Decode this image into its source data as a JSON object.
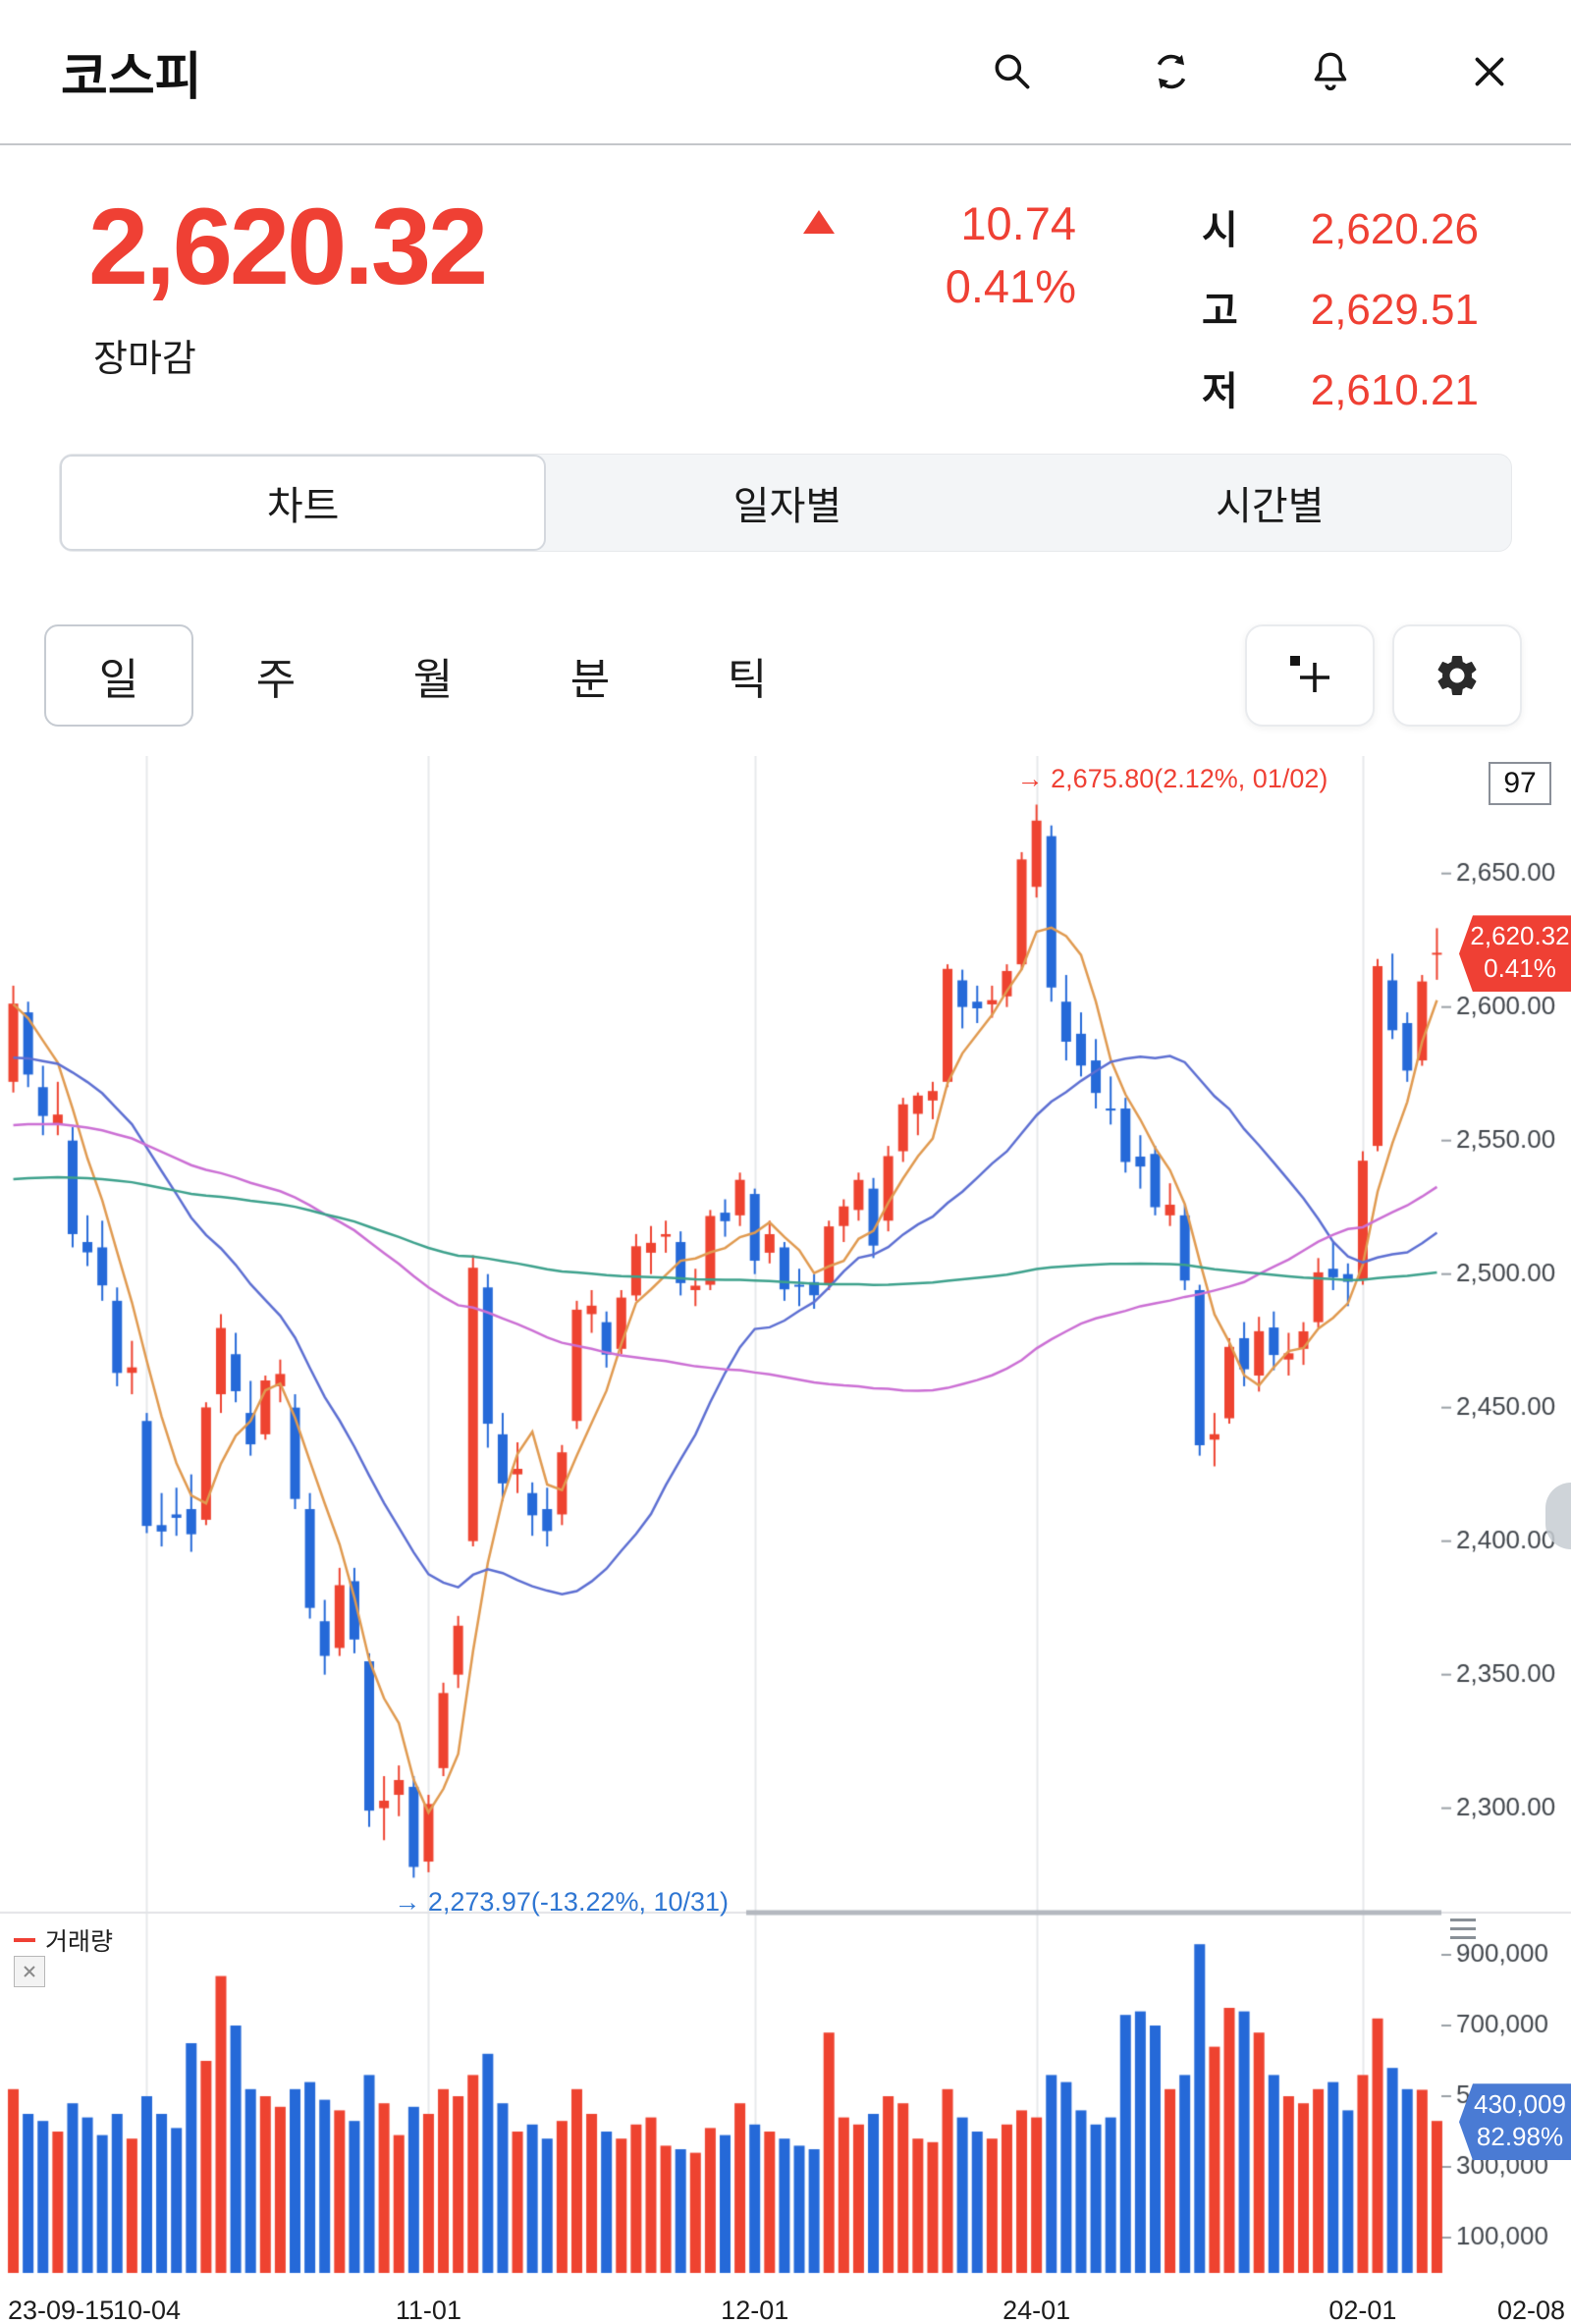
{
  "header": {
    "title": "코스피"
  },
  "price": {
    "current": "2,620.32",
    "status": "장마감",
    "change": "10.74",
    "change_pct": "0.41%",
    "ohl": [
      {
        "label": "시",
        "value": "2,620.26"
      },
      {
        "label": "고",
        "value": "2,629.51"
      },
      {
        "label": "저",
        "value": "2,610.21"
      }
    ]
  },
  "tabs": [
    {
      "label": "차트",
      "selected": true
    },
    {
      "label": "일자별",
      "selected": false
    },
    {
      "label": "시간별",
      "selected": false
    }
  ],
  "period_tabs": [
    {
      "label": "일",
      "selected": true
    },
    {
      "label": "주",
      "selected": false
    },
    {
      "label": "월",
      "selected": false
    },
    {
      "label": "분",
      "selected": false
    },
    {
      "label": "틱",
      "selected": false
    }
  ],
  "chart_data": {
    "type": "candlestick",
    "count_label": "97",
    "colors": {
      "up": "#ee4330",
      "down": "#2569d8",
      "badge_red": "#ef4034",
      "badge_blue": "#4a7bd4"
    },
    "price_range": [
      2262,
      2694
    ],
    "volume_max": 1000000,
    "grid_indices": [
      9,
      28,
      50,
      69,
      91
    ],
    "y_ticks": [
      {
        "label": "2,650.00",
        "value": 2650
      },
      {
        "label": "2,600.00",
        "value": 2600
      },
      {
        "label": "2,550.00",
        "value": 2550
      },
      {
        "label": "2,500.00",
        "value": 2500
      },
      {
        "label": "2,450.00",
        "value": 2450
      },
      {
        "label": "2,400.00",
        "value": 2400
      },
      {
        "label": "2,350.00",
        "value": 2350
      },
      {
        "label": "2,300.00",
        "value": 2300
      }
    ],
    "volume_ticks": [
      {
        "label": "900,000",
        "value": 900000
      },
      {
        "label": "700,000",
        "value": 700000
      },
      {
        "label": "500,000",
        "value": 500000
      },
      {
        "label": "300,000",
        "value": 300000
      },
      {
        "label": "100,000",
        "value": 100000
      }
    ],
    "x_labels": [
      {
        "label": "23-09-15",
        "index": 0,
        "align": "left"
      },
      {
        "label": "10-04",
        "index": 9
      },
      {
        "label": "11-01",
        "index": 28
      },
      {
        "label": "12-01",
        "index": 50
      },
      {
        "label": "24-01",
        "index": 69
      },
      {
        "label": "02-01",
        "index": 91
      },
      {
        "label": "02-08",
        "index": 96,
        "align": "right"
      }
    ],
    "annotations": {
      "high": {
        "text": "→ 2,675.80(2.12%, 01/02)",
        "index": 69,
        "price": 2675.8
      },
      "low": {
        "text": "→ 2,273.97(-13.22%, 10/31)",
        "index": 27,
        "price": 2273.97
      }
    },
    "price_badge": {
      "line1": "2,620.32",
      "line2": "0.41%"
    },
    "volume_badge": {
      "line1": "430,009",
      "line2": "82.98%"
    },
    "legend": {
      "volume": "거래량"
    },
    "ma": [
      {
        "period": 5,
        "pad": 2601,
        "color": "#e09a50"
      },
      {
        "period": 20,
        "pad": 2580,
        "color": "#5d6fd2"
      },
      {
        "period": 60,
        "pad": 2555,
        "color": "#cb6fd4"
      },
      {
        "period": 120,
        "pad": 2535,
        "color": "#3da18c"
      }
    ],
    "candles": [
      [
        "23-09-15",
        2572,
        2608,
        2568,
        2601.28,
        520000
      ],
      [
        "23-09-18",
        2598,
        2602,
        2570,
        2574.72,
        450000
      ],
      [
        "23-09-19",
        2570,
        2578,
        2552,
        2559.21,
        430000
      ],
      [
        "23-09-20",
        2556,
        2572,
        2552,
        2559.74,
        400000
      ],
      [
        "23-09-21",
        2550,
        2555,
        2510,
        2514.97,
        480000
      ],
      [
        "23-09-22",
        2512,
        2522,
        2503,
        2508.13,
        440000
      ],
      [
        "23-09-25",
        2510,
        2520,
        2490,
        2495.76,
        390000
      ],
      [
        "23-09-26",
        2490,
        2495,
        2458,
        2462.97,
        450000
      ],
      [
        "23-09-27",
        2463,
        2475,
        2455,
        2465.07,
        380000
      ],
      [
        "23-10-04",
        2445,
        2448,
        2403,
        2405.69,
        500000
      ],
      [
        "23-10-05",
        2406,
        2418,
        2398,
        2403.6,
        450000
      ],
      [
        "23-10-06",
        2410,
        2420,
        2402,
        2408.73,
        410000
      ],
      [
        "23-10-10",
        2412,
        2425,
        2396,
        2402.58,
        650000
      ],
      [
        "23-10-11",
        2408,
        2452,
        2406,
        2450.08,
        600000
      ],
      [
        "23-10-12",
        2455,
        2485,
        2448,
        2479.82,
        840000
      ],
      [
        "23-10-13",
        2470,
        2478,
        2452,
        2456.15,
        700000
      ],
      [
        "23-10-16",
        2448,
        2460,
        2432,
        2436.24,
        520000
      ],
      [
        "23-10-17",
        2440,
        2462,
        2438,
        2460.17,
        500000
      ],
      [
        "23-10-18",
        2458,
        2468,
        2452,
        2462.6,
        470000
      ],
      [
        "23-10-19",
        2450,
        2455,
        2412,
        2415.8,
        520000
      ],
      [
        "23-10-20",
        2412,
        2418,
        2371,
        2375.0,
        540000
      ],
      [
        "23-10-23",
        2370,
        2378,
        2350,
        2357.02,
        490000
      ],
      [
        "23-10-24",
        2360,
        2390,
        2357,
        2383.51,
        460000
      ],
      [
        "23-10-25",
        2385,
        2390,
        2358,
        2363.17,
        430000
      ],
      [
        "23-10-26",
        2355,
        2358,
        2293,
        2299.08,
        560000
      ],
      [
        "23-10-27",
        2300,
        2312,
        2288,
        2302.81,
        480000
      ],
      [
        "23-10-30",
        2305,
        2316,
        2297,
        2310.55,
        390000
      ],
      [
        "23-10-31",
        2308,
        2312,
        2273.97,
        2277.99,
        470000
      ],
      [
        "23-11-01",
        2280,
        2305,
        2276,
        2301.56,
        450000
      ],
      [
        "23-11-02",
        2315,
        2347,
        2312,
        2343.12,
        520000
      ],
      [
        "23-11-03",
        2350,
        2372,
        2345,
        2368.34,
        500000
      ],
      [
        "23-11-06",
        2400,
        2507,
        2398,
        2502.37,
        560000
      ],
      [
        "23-11-07",
        2495,
        2500,
        2435,
        2443.96,
        620000
      ],
      [
        "23-11-08",
        2440,
        2448,
        2415,
        2421.62,
        480000
      ],
      [
        "23-11-09",
        2425,
        2437,
        2418,
        2427.08,
        400000
      ],
      [
        "23-11-10",
        2418,
        2422,
        2402,
        2409.66,
        420000
      ],
      [
        "23-11-13",
        2412,
        2420,
        2398,
        2403.76,
        380000
      ],
      [
        "23-11-14",
        2410,
        2436,
        2406,
        2433.25,
        430000
      ],
      [
        "23-11-15",
        2445,
        2490,
        2442,
        2486.67,
        520000
      ],
      [
        "23-11-16",
        2485,
        2494,
        2478,
        2488.18,
        450000
      ],
      [
        "23-11-17",
        2482,
        2486,
        2465,
        2469.85,
        400000
      ],
      [
        "23-11-20",
        2472,
        2494,
        2470,
        2491.2,
        380000
      ],
      [
        "23-11-21",
        2492,
        2515,
        2490,
        2510.42,
        420000
      ],
      [
        "23-11-22",
        2508,
        2518,
        2500,
        2511.7,
        440000
      ],
      [
        "23-11-23",
        2514,
        2520,
        2508,
        2514.96,
        360000
      ],
      [
        "23-11-24",
        2512,
        2516,
        2492,
        2496.63,
        350000
      ],
      [
        "23-11-27",
        2494,
        2502,
        2488,
        2495.66,
        340000
      ],
      [
        "23-11-28",
        2496,
        2524,
        2494,
        2521.76,
        410000
      ],
      [
        "23-11-29",
        2523,
        2528,
        2514,
        2519.81,
        390000
      ],
      [
        "23-11-30",
        2522,
        2538,
        2518,
        2535.29,
        480000
      ],
      [
        "23-12-01",
        2530,
        2532,
        2500,
        2505.01,
        420000
      ],
      [
        "23-12-04",
        2508,
        2520,
        2504,
        2514.95,
        400000
      ],
      [
        "23-12-05",
        2510,
        2512,
        2490,
        2494.28,
        380000
      ],
      [
        "23-12-06",
        2496,
        2502,
        2488,
        2495.38,
        360000
      ],
      [
        "23-12-07",
        2497,
        2500,
        2487,
        2492.07,
        350000
      ],
      [
        "23-12-08",
        2496,
        2520,
        2494,
        2517.85,
        680000
      ],
      [
        "23-12-11",
        2518,
        2528,
        2512,
        2525.36,
        440000
      ],
      [
        "23-12-12",
        2524,
        2538,
        2520,
        2535.27,
        420000
      ],
      [
        "23-12-13",
        2532,
        2536,
        2506,
        2510.66,
        450000
      ],
      [
        "23-12-14",
        2520,
        2548,
        2516,
        2544.18,
        500000
      ],
      [
        "23-12-15",
        2546,
        2566,
        2542,
        2563.56,
        480000
      ],
      [
        "23-12-18",
        2560,
        2568,
        2552,
        2566.86,
        380000
      ],
      [
        "23-12-19",
        2565,
        2572,
        2558,
        2568.55,
        370000
      ],
      [
        "23-12-20",
        2572,
        2616,
        2570,
        2614.3,
        520000
      ],
      [
        "23-12-21",
        2610,
        2614,
        2592,
        2600.02,
        440000
      ],
      [
        "23-12-22",
        2602,
        2608,
        2594,
        2599.51,
        400000
      ],
      [
        "23-12-26",
        2601,
        2608,
        2596,
        2602.59,
        380000
      ],
      [
        "23-12-27",
        2604,
        2616,
        2600,
        2613.5,
        420000
      ],
      [
        "23-12-28",
        2616,
        2658,
        2614,
        2655.28,
        460000
      ],
      [
        "24-01-02",
        2645,
        2675.8,
        2641,
        2669.81,
        440000
      ],
      [
        "24-01-03",
        2664,
        2668,
        2602,
        2607.31,
        560000
      ],
      [
        "24-01-04",
        2602,
        2612,
        2580,
        2587.02,
        540000
      ],
      [
        "24-01-05",
        2590,
        2598,
        2574,
        2578.08,
        460000
      ],
      [
        "24-01-08",
        2580,
        2588,
        2562,
        2567.82,
        420000
      ],
      [
        "24-01-09",
        2562,
        2574,
        2556,
        2561.24,
        440000
      ],
      [
        "24-01-10",
        2562,
        2566,
        2538,
        2541.98,
        730000
      ],
      [
        "24-01-11",
        2544,
        2552,
        2532,
        2540.27,
        740000
      ],
      [
        "24-01-12",
        2545,
        2548,
        2522,
        2525.05,
        700000
      ],
      [
        "24-01-15",
        2522,
        2534,
        2518,
        2525.99,
        520000
      ],
      [
        "24-01-16",
        2522,
        2526,
        2494,
        2497.59,
        560000
      ],
      [
        "24-01-17",
        2494,
        2496,
        2432,
        2435.9,
        930000
      ],
      [
        "24-01-18",
        2438,
        2448,
        2428,
        2440.04,
        640000
      ],
      [
        "24-01-19",
        2446,
        2476,
        2444,
        2472.74,
        750000
      ],
      [
        "24-01-22",
        2476,
        2482,
        2458,
        2464.35,
        740000
      ],
      [
        "24-01-23",
        2462,
        2484,
        2456,
        2478.61,
        680000
      ],
      [
        "24-01-24",
        2480,
        2486,
        2464,
        2469.69,
        560000
      ],
      [
        "24-01-25",
        2468,
        2478,
        2462,
        2470.34,
        500000
      ],
      [
        "24-01-26",
        2472,
        2482,
        2466,
        2478.56,
        480000
      ],
      [
        "24-01-29",
        2482,
        2506,
        2480,
        2500.65,
        520000
      ],
      [
        "24-01-30",
        2502,
        2512,
        2494,
        2498.81,
        540000
      ],
      [
        "24-01-31",
        2500,
        2504,
        2488,
        2497.09,
        460000
      ],
      [
        "24-02-01",
        2498,
        2546,
        2496,
        2542.46,
        560000
      ],
      [
        "24-02-02",
        2548,
        2618,
        2546,
        2615.31,
        720000
      ],
      [
        "24-02-05",
        2610,
        2620,
        2588,
        2591.31,
        580000
      ],
      [
        "24-02-06",
        2594,
        2598,
        2572,
        2576.2,
        520000
      ],
      [
        "24-02-07",
        2580,
        2612,
        2578,
        2609.58,
        518200
      ],
      [
        "24-02-08",
        2620.26,
        2629.51,
        2610.21,
        2620.32,
        430009
      ]
    ]
  }
}
